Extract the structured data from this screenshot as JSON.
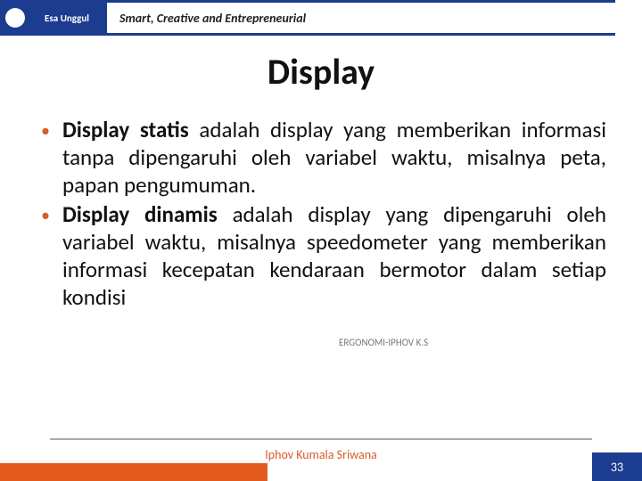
{
  "brand": {
    "name": "Esa Unggul",
    "tagline": "Smart, Creative and Entrepreneurial",
    "brand_bg": "#1b3c8f",
    "accent": "#e45b1f"
  },
  "slide": {
    "title": "Display",
    "bullets": [
      {
        "term": "Display statis",
        "rest": " adalah display yang memberikan informasi tanpa dipengaruhi oleh variabel waktu, misalnya peta, papan pengumuman."
      },
      {
        "term": "Display dinamis",
        "rest": " adalah display yang dipengaruhi oleh variabel waktu, misalnya speedometer yang memberikan informasi kecepatan kendaraan bermotor dalam setiap kondisi"
      }
    ],
    "bullet_color": "#d95c2a",
    "watermark": "ERGONOMI-IPHOV K.S",
    "presenter": "Iphov Kumala Sriwana",
    "presenter_color": "#d95c2a",
    "page_number": "33"
  }
}
